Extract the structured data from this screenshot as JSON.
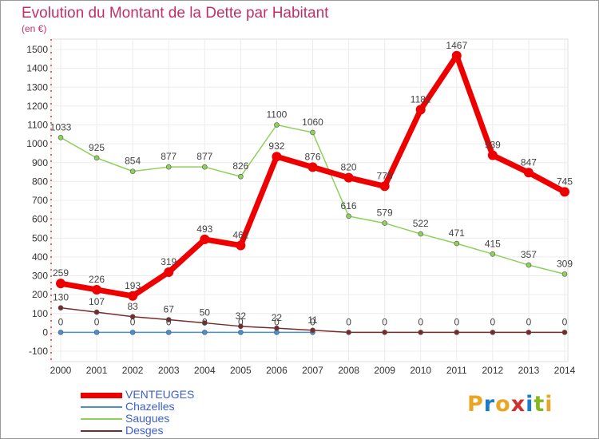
{
  "header": {
    "title": "Evolution du Montant de la Dette par Habitant",
    "subtitle": "(en €)"
  },
  "logo": {
    "text": "Proxiti",
    "colors": [
      "#e8a623",
      "#1a7dc8",
      "#e8a623",
      "#d02f2f",
      "#1a7dc8",
      "#86b81e",
      "#e8a623"
    ]
  },
  "chart_data": {
    "type": "line",
    "title": "Evolution du Montant de la Dette par Habitant",
    "subtitle": "(en €)",
    "x": [
      2000,
      2001,
      2002,
      2003,
      2004,
      2005,
      2006,
      2007,
      2008,
      2009,
      2010,
      2011,
      2012,
      2013,
      2014
    ],
    "ylim": [
      -100,
      1500
    ],
    "yticks": [
      -100,
      0,
      100,
      200,
      300,
      400,
      500,
      600,
      700,
      800,
      900,
      1000,
      1100,
      1200,
      1300,
      1400,
      1500
    ],
    "grid": true,
    "legend_position": "bottom-left",
    "series": [
      {
        "name": "VENTEUGES",
        "color": "#ee0000",
        "values": [
          259,
          226,
          193,
          319,
          493,
          461,
          932,
          876,
          820,
          775,
          1181,
          1467,
          939,
          847,
          745
        ],
        "labels": [
          "259",
          "226",
          "193",
          "319",
          "493",
          "461",
          "932",
          "876",
          "820",
          "775",
          "1181",
          "1467",
          "939",
          "847",
          "745"
        ]
      },
      {
        "name": "Chazelles",
        "color": "#4a8fd4",
        "values": [
          0,
          0,
          0,
          0,
          0,
          0,
          0,
          0,
          null,
          null,
          null,
          null,
          null,
          null,
          null
        ],
        "labels": [
          "0",
          "0",
          "0",
          "0",
          "0",
          "0",
          "0",
          "0",
          null,
          null,
          null,
          null,
          null,
          null,
          null
        ]
      },
      {
        "name": "Saugues",
        "color": "#8fd05a",
        "values": [
          1033,
          925,
          854,
          877,
          877,
          826,
          1100,
          1060,
          616,
          579,
          522,
          471,
          415,
          357,
          309
        ],
        "labels": [
          "1033",
          "925",
          "854",
          "877",
          "877",
          "826",
          "1100",
          "1060",
          "616",
          "579",
          "522",
          "471",
          "415",
          "357",
          "309"
        ]
      },
      {
        "name": "Desges",
        "color": "#7a2a2a",
        "values": [
          130,
          107,
          83,
          67,
          50,
          32,
          22,
          11,
          0,
          0,
          0,
          0,
          0,
          0,
          0
        ],
        "labels": [
          "130",
          "107",
          "83",
          "67",
          "50",
          "32",
          "22",
          "11",
          "0",
          "0",
          "0",
          "0",
          "0",
          "0",
          "0"
        ]
      }
    ]
  }
}
